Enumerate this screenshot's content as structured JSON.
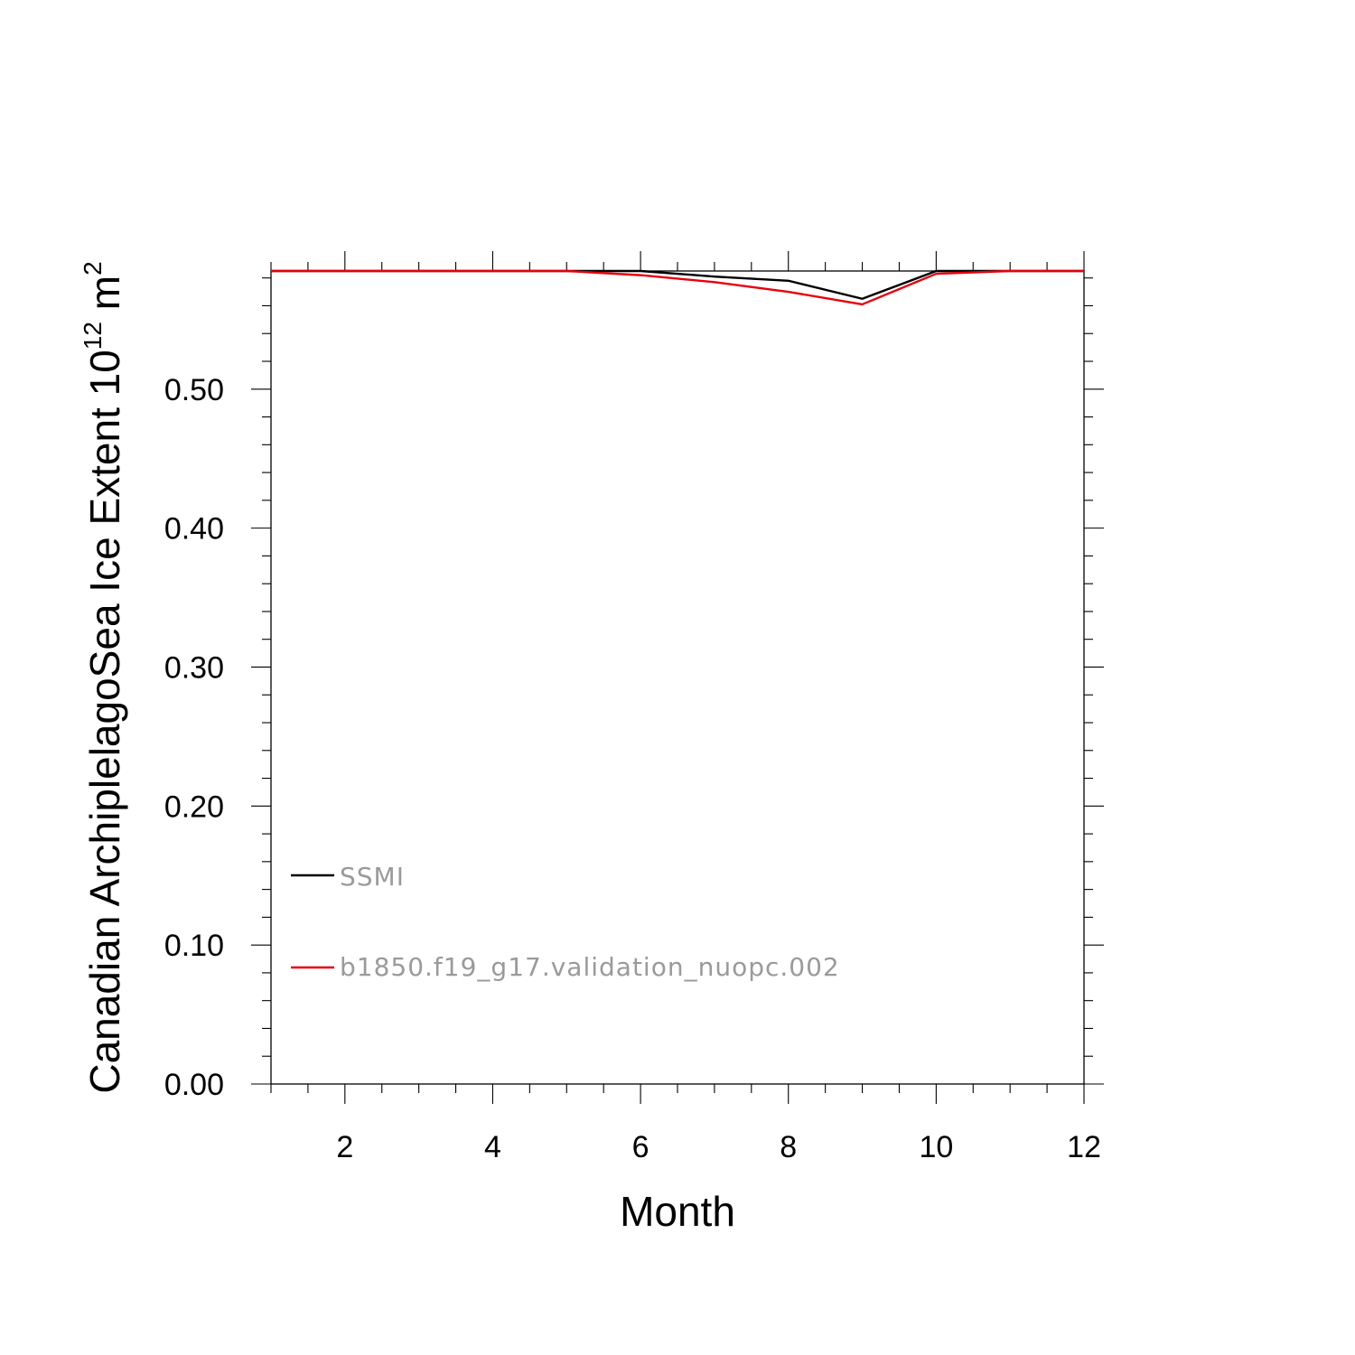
{
  "chart_data": {
    "type": "line",
    "xlabel": "Month",
    "ylabel": {
      "main": "Canadian ArchiplelagoSea Ice Extent 10",
      "exp": "12",
      "unit": " m",
      "unit_exp": "2"
    },
    "xlim": [
      1,
      12
    ],
    "ylim": [
      0,
      0.585
    ],
    "x_ticks": [
      2,
      4,
      6,
      8,
      10,
      12
    ],
    "x_tick_labels": [
      "2",
      "4",
      "6",
      "8",
      "10",
      "12"
    ],
    "y_ticks": [
      0,
      0.1,
      0.2,
      0.3,
      0.4,
      0.5
    ],
    "y_tick_labels": [
      "0.00",
      "0.10",
      "0.20",
      "0.30",
      "0.40",
      "0.50"
    ],
    "x": [
      1,
      2,
      3,
      4,
      5,
      6,
      7,
      8,
      9,
      10,
      11,
      12
    ],
    "series": [
      {
        "name": "SSMI",
        "color": "#000000",
        "values": [
          0.585,
          0.585,
          0.585,
          0.585,
          0.585,
          0.585,
          0.581,
          0.578,
          0.565,
          0.585,
          0.585,
          0.585
        ]
      },
      {
        "name": "b1850.f19_g17.validation_nuopc.002",
        "color": "#e8000b",
        "values": [
          0.585,
          0.585,
          0.585,
          0.585,
          0.585,
          0.582,
          0.577,
          0.57,
          0.561,
          0.583,
          0.585,
          0.585
        ]
      }
    ],
    "grid": false,
    "legend_placement": "lower-left inside"
  }
}
